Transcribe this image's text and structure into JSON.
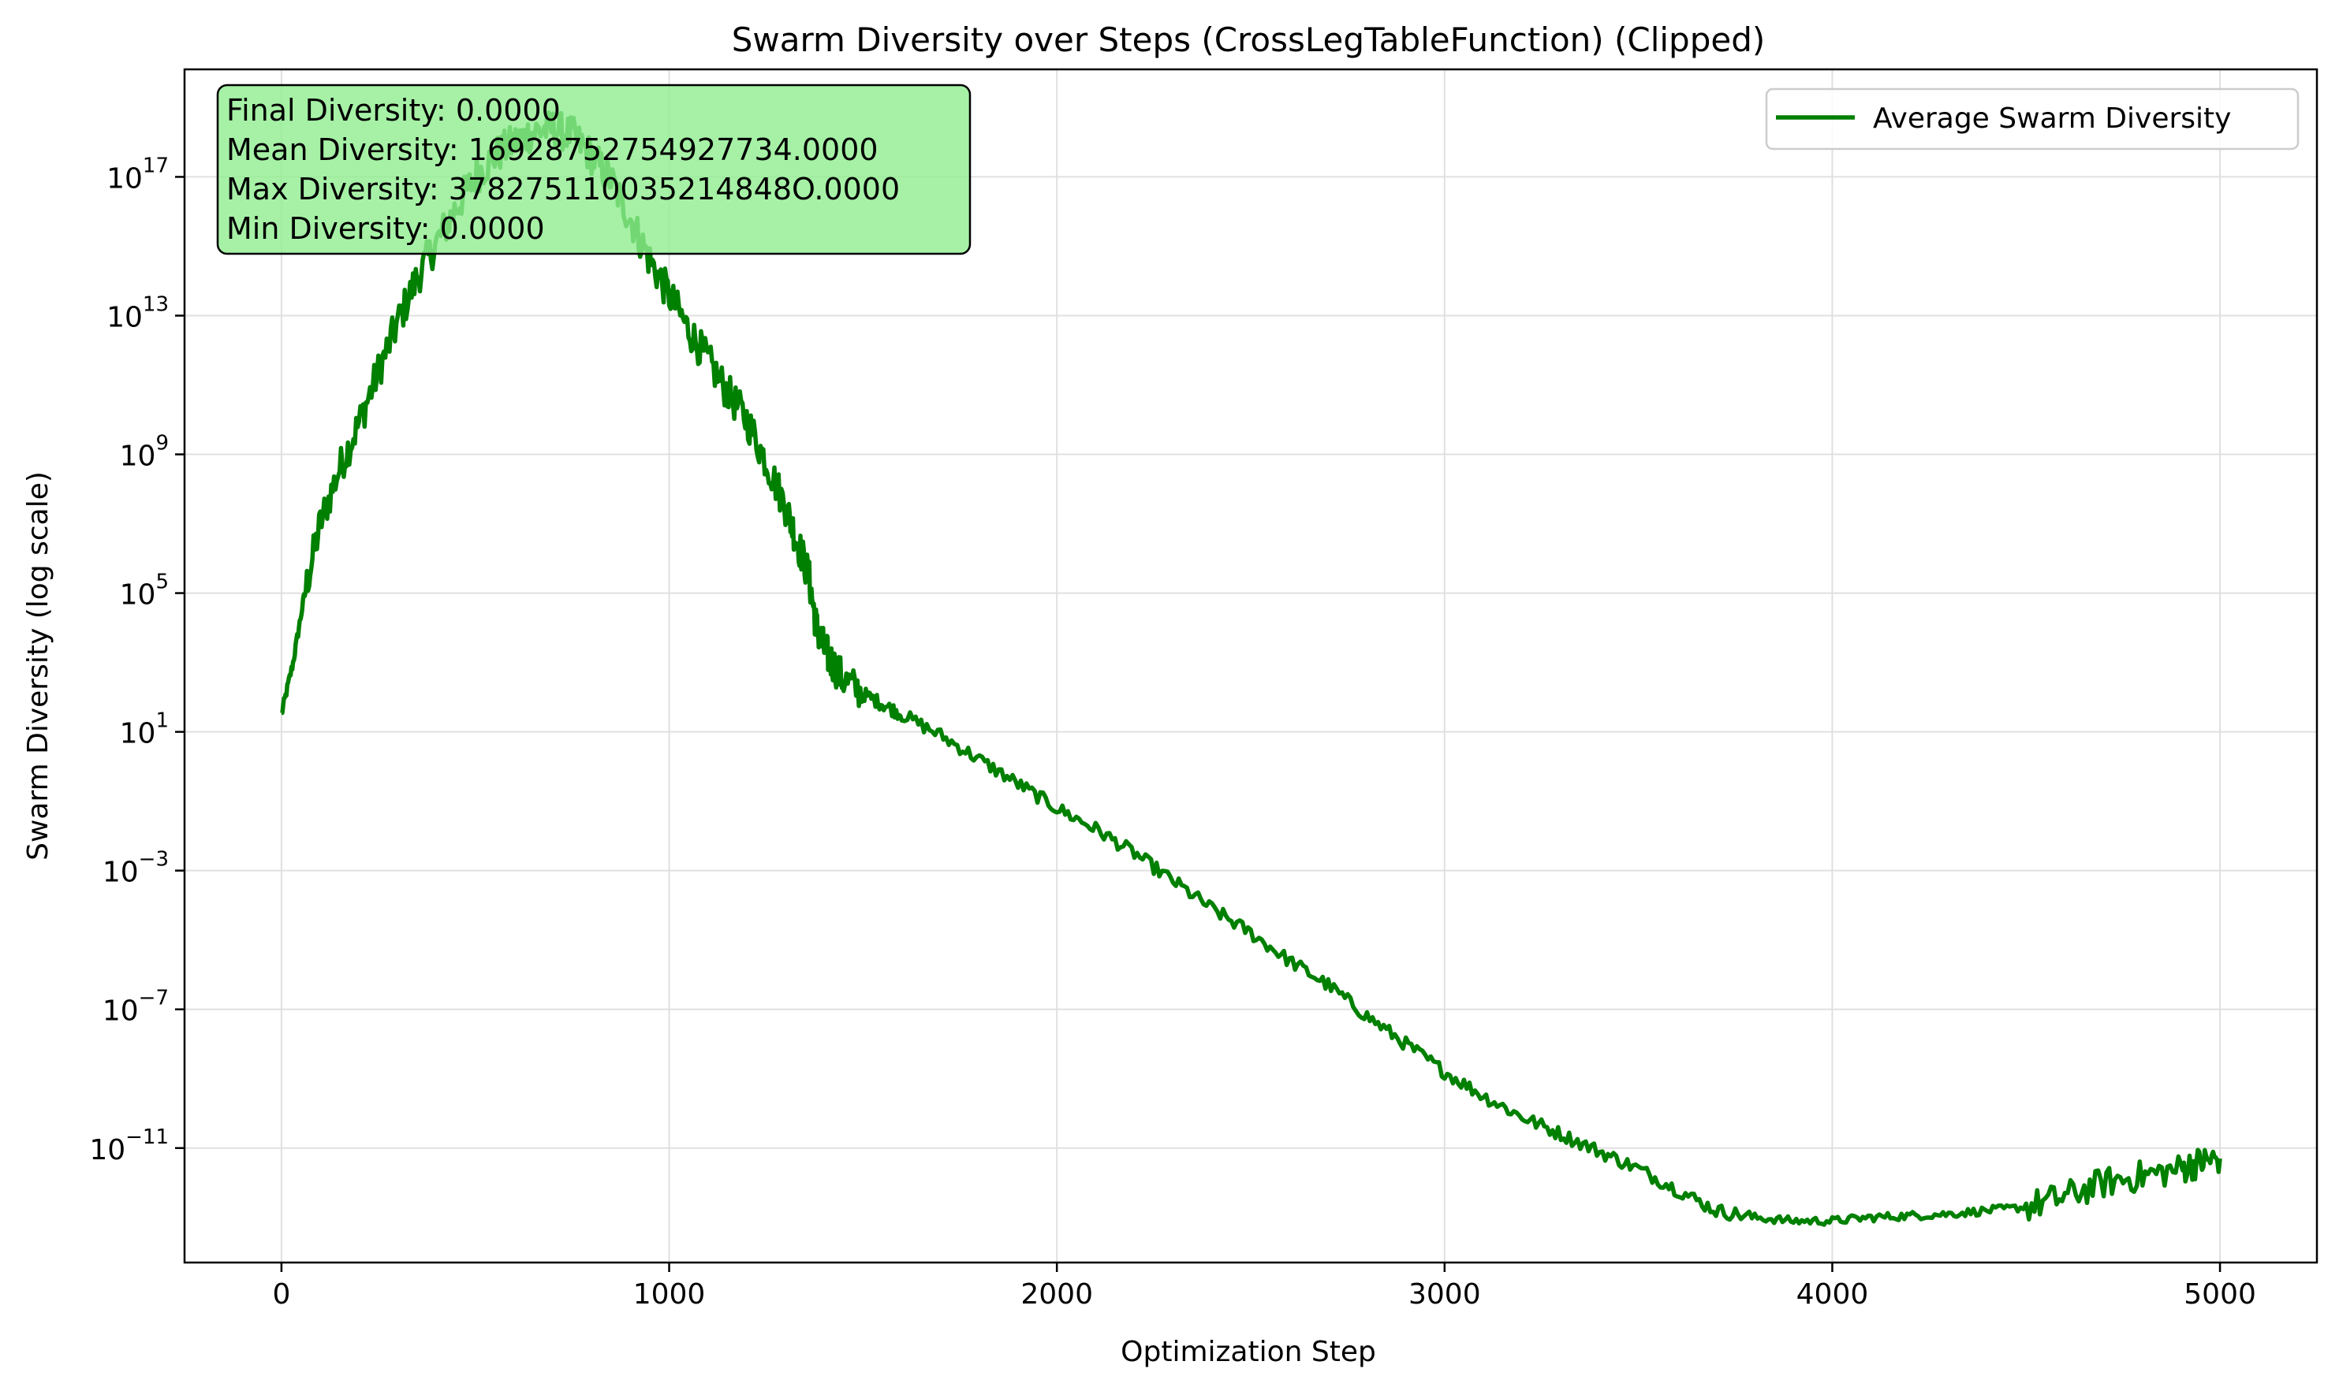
{
  "chart_data": {
    "type": "line",
    "title": "Swarm Diversity over Steps (CrossLegTableFunction) (Clipped)",
    "xlabel": "Optimization Step",
    "ylabel": "Swarm Diversity (log scale)",
    "xlim": [
      -250,
      5250
    ],
    "ylim_log10": [
      -14.3,
      20.1
    ],
    "y_scale": "log",
    "x_ticks": [
      0,
      1000,
      2000,
      3000,
      4000,
      5000
    ],
    "x_tick_labels": [
      "0",
      "1000",
      "2000",
      "3000",
      "4000",
      "5000"
    ],
    "y_ticks_log10": [
      -11,
      -7,
      -3,
      1,
      5,
      9,
      13,
      17
    ],
    "grid": true,
    "legend": {
      "placement": "top-right",
      "entries": [
        "Average Swarm Diversity"
      ]
    },
    "series": [
      {
        "name": "Average Swarm Diversity",
        "color": "#008000",
        "x": [
          0,
          30,
          60,
          100,
          150,
          200,
          250,
          300,
          350,
          400,
          450,
          500,
          550,
          600,
          650,
          700,
          750,
          800,
          850,
          900,
          950,
          1000,
          1050,
          1100,
          1150,
          1200,
          1250,
          1300,
          1330,
          1360,
          1380,
          1400,
          1420,
          1450,
          1500,
          1550,
          1600,
          1700,
          1800,
          1900,
          2000,
          2100,
          2200,
          2300,
          2400,
          2500,
          2600,
          2700,
          2800,
          2900,
          3000,
          3100,
          3200,
          3300,
          3400,
          3500,
          3600,
          3700,
          3800,
          3900,
          4000,
          4100,
          4200,
          4300,
          4400,
          4500,
          4600,
          4700,
          4800,
          4900,
          4950,
          5000
        ],
        "log10_y": [
          1.5,
          3.0,
          5.0,
          7.0,
          8.6,
          9.9,
          11.4,
          12.8,
          14.1,
          15.1,
          16.1,
          17.0,
          17.6,
          18.0,
          18.3,
          18.4,
          18.2,
          17.6,
          16.9,
          15.8,
          14.6,
          13.6,
          12.6,
          11.7,
          10.8,
          10.0,
          8.8,
          7.5,
          6.5,
          5.5,
          4.0,
          3.4,
          3.0,
          2.5,
          2.1,
          1.8,
          1.5,
          0.9,
          0.2,
          -0.5,
          -1.2,
          -1.8,
          -2.5,
          -3.3,
          -4.1,
          -4.8,
          -5.6,
          -6.3,
          -7.2,
          -8.0,
          -8.8,
          -9.5,
          -10.1,
          -10.6,
          -11.1,
          -11.6,
          -12.2,
          -12.8,
          -13.0,
          -13.1,
          -13.1,
          -13.0,
          -12.95,
          -12.9,
          -12.8,
          -12.7,
          -12.4,
          -12.0,
          -11.8,
          -11.6,
          -11.4,
          -11.3
        ]
      }
    ],
    "annotation_lines": [
      "Final Diversity: 0.0000",
      "Mean Diversity: 16928752754927734.0000",
      "Max Diversity: 378275110035214848O.0000",
      "Min Diversity: 0.0000"
    ],
    "annotation_box_color": "#90ee90"
  }
}
